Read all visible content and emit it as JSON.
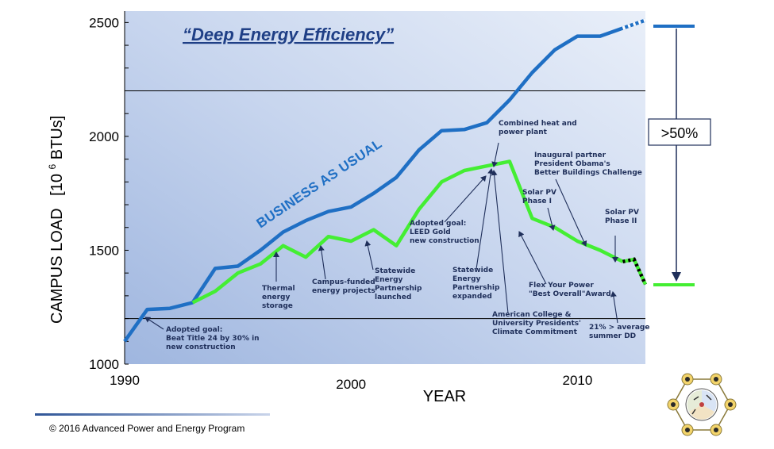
{
  "chart_data": {
    "type": "line",
    "title": "“Deep Energy Efficiency”",
    "xlabel": "YEAR",
    "ylabel_main": "CAMPUS LOAD",
    "ylabel_unit_open": "[10",
    "ylabel_unit_exp": "6",
    "ylabel_unit_close": " BTUs]",
    "xlim": [
      1990,
      2013
    ],
    "ylim": [
      1000,
      2550
    ],
    "xticks": [
      "1990",
      "2000",
      "2010"
    ],
    "yticks": [
      "1000",
      "1500",
      "2000",
      "2500"
    ],
    "hlines": [
      1200,
      2200
    ],
    "series": [
      {
        "name": "BUSINESS AS USUAL",
        "color": "#1f6fc4",
        "points": [
          [
            1990,
            1100
          ],
          [
            1991,
            1240
          ],
          [
            1992,
            1245
          ],
          [
            1993,
            1270
          ],
          [
            1994,
            1420
          ],
          [
            1995,
            1430
          ],
          [
            1996,
            1500
          ],
          [
            1997,
            1580
          ],
          [
            1998,
            1630
          ],
          [
            1999,
            1670
          ],
          [
            2000,
            1690
          ],
          [
            2001,
            1750
          ],
          [
            2002,
            1820
          ],
          [
            2003,
            1940
          ],
          [
            2004,
            2025
          ],
          [
            2005,
            2030
          ],
          [
            2006,
            2060
          ],
          [
            2007,
            2160
          ],
          [
            2008,
            2280
          ],
          [
            2009,
            2380
          ],
          [
            2010,
            2440
          ],
          [
            2011,
            2440
          ],
          [
            2012,
            2475
          ]
        ],
        "projection": [
          [
            2012,
            2475
          ],
          [
            2013,
            2510
          ]
        ]
      },
      {
        "name": "",
        "color": "#44ee33",
        "points": [
          [
            1993,
            1270
          ],
          [
            1994,
            1320
          ],
          [
            1995,
            1400
          ],
          [
            1996,
            1440
          ],
          [
            1997,
            1520
          ],
          [
            1998,
            1470
          ],
          [
            1999,
            1560
          ],
          [
            2000,
            1540
          ],
          [
            2001,
            1590
          ],
          [
            2002,
            1520
          ],
          [
            2003,
            1680
          ],
          [
            2004,
            1800
          ],
          [
            2005,
            1850
          ],
          [
            2006,
            1870
          ],
          [
            2007,
            1890
          ],
          [
            2008,
            1640
          ],
          [
            2009,
            1600
          ],
          [
            2010,
            1540
          ],
          [
            2011,
            1500
          ],
          [
            2012,
            1450
          ]
        ],
        "projection": [
          [
            2012,
            1450
          ],
          [
            2012.5,
            1460
          ],
          [
            2013,
            1350
          ]
        ]
      }
    ],
    "band_label": "BUSINESS AS USUAL",
    "bracket_label": ">50%",
    "annotations": [
      {
        "lines": [
          "Adopted goal:",
          "Beat Title 24 by 30% in",
          "new construction"
        ]
      },
      {
        "lines": [
          "Thermal",
          "energy",
          "storage"
        ]
      },
      {
        "lines": [
          "Campus-funded",
          "energy projects"
        ]
      },
      {
        "lines": [
          "Statewide",
          "Energy",
          "Partnership",
          "launched"
        ]
      },
      {
        "lines": [
          "Adopted goal:",
          "LEED Gold",
          "new construction"
        ]
      },
      {
        "lines": [
          "Statewide",
          "Energy",
          "Partnership",
          "expanded"
        ]
      },
      {
        "lines": [
          "Combined heat and",
          "power plant"
        ]
      },
      {
        "lines": [
          "American College &",
          "University Presidents'",
          "Climate Commitment"
        ]
      },
      {
        "lines": [
          "Inaugural partner",
          "President Obama's",
          "Better Buildings Challenge"
        ]
      },
      {
        "lines": [
          "Solar PV",
          "Phase I"
        ]
      },
      {
        "lines": [
          "Flex Your Power",
          "\"Best Overall\"Award"
        ]
      },
      {
        "lines": [
          "Solar PV",
          "Phase II"
        ]
      },
      {
        "lines": [
          "21% > average",
          "summer DD"
        ]
      }
    ]
  },
  "footer": {
    "copyright": "©  2016  Advanced Power and Energy Program"
  }
}
